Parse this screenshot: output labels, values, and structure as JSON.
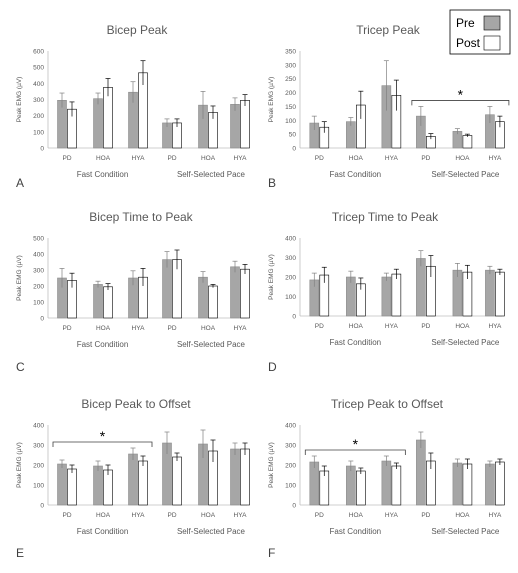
{
  "legend": {
    "entries": [
      {
        "label": "Pre",
        "color": "#a6a6a6"
      },
      {
        "label": "Post",
        "color": "#ffffff"
      }
    ]
  },
  "chart_data": [
    {
      "type": "bar",
      "letter": "A",
      "title": "Bicep Peak",
      "ylabel": "Peak EMG (µV)",
      "ylim": [
        0,
        600
      ],
      "yticks": [
        0,
        100,
        200,
        300,
        400,
        500,
        600
      ],
      "categories": [
        "PD",
        "HOA",
        "HYA",
        "PD",
        "HOA",
        "HYA"
      ],
      "conditions": [
        "Fast Condition",
        "Self-Selected Pace"
      ],
      "series": [
        {
          "name": "Pre",
          "values": [
            295,
            305,
            345,
            155,
            265,
            270
          ],
          "errors": [
            45,
            35,
            65,
            25,
            85,
            40
          ]
        },
        {
          "name": "Post",
          "values": [
            240,
            375,
            465,
            155,
            220,
            295
          ],
          "errors": [
            45,
            55,
            75,
            25,
            40,
            35
          ]
        }
      ],
      "significance": null
    },
    {
      "type": "bar",
      "letter": "B",
      "title": "Tricep Peak",
      "ylabel": "Peak EMG (µV)",
      "ylim": [
        0,
        350
      ],
      "yticks": [
        0,
        50,
        100,
        150,
        200,
        250,
        300,
        350
      ],
      "categories": [
        "PD",
        "HOA",
        "HYA",
        "PD",
        "HOA",
        "HYA"
      ],
      "conditions": [
        "Fast Condition",
        "Self-Selected Pace"
      ],
      "series": [
        {
          "name": "Pre",
          "values": [
            90,
            95,
            225,
            115,
            60,
            120
          ],
          "errors": [
            25,
            15,
            90,
            35,
            10,
            30
          ]
        },
        {
          "name": "Post",
          "values": [
            75,
            155,
            190,
            42,
            45,
            95
          ],
          "errors": [
            20,
            50,
            55,
            10,
            5,
            20
          ]
        }
      ],
      "significance": {
        "label": "*",
        "from": 3,
        "to": 5
      }
    },
    {
      "type": "bar",
      "letter": "C",
      "title": "Bicep Time to Peak",
      "ylabel": "Peak EMG (µV)",
      "ylim": [
        0,
        500
      ],
      "yticks": [
        0,
        100,
        200,
        300,
        400,
        500
      ],
      "categories": [
        "PD",
        "HOA",
        "HYA",
        "PD",
        "HOA",
        "HYA"
      ],
      "conditions": [
        "Fast Condition",
        "Self-Selected Pace"
      ],
      "series": [
        {
          "name": "Pre",
          "values": [
            250,
            210,
            250,
            365,
            255,
            320
          ],
          "errors": [
            60,
            20,
            45,
            50,
            35,
            35
          ]
        },
        {
          "name": "Post",
          "values": [
            235,
            195,
            255,
            365,
            200,
            305
          ],
          "errors": [
            45,
            20,
            55,
            60,
            10,
            30
          ]
        }
      ],
      "significance": null
    },
    {
      "type": "bar",
      "letter": "D",
      "title": "Tricep Time to Peak",
      "ylabel": "Peak EMG (µV)",
      "ylim": [
        0,
        400
      ],
      "yticks": [
        0,
        100,
        200,
        300,
        400
      ],
      "categories": [
        "PD",
        "HOA",
        "HYA",
        "PD",
        "HOA",
        "HYA"
      ],
      "conditions": [
        "Fast Condition",
        "Self-Selected Pace"
      ],
      "series": [
        {
          "name": "Pre",
          "values": [
            185,
            200,
            200,
            295,
            235,
            235
          ],
          "errors": [
            35,
            30,
            20,
            40,
            35,
            20
          ]
        },
        {
          "name": "Post",
          "values": [
            210,
            165,
            215,
            255,
            225,
            225
          ],
          "errors": [
            40,
            30,
            25,
            55,
            35,
            15
          ]
        }
      ],
      "significance": null
    },
    {
      "type": "bar",
      "letter": "E",
      "title": "Bicep Peak to Offset",
      "ylabel": "Peak EMG (µV)",
      "ylim": [
        0,
        400
      ],
      "yticks": [
        0,
        100,
        200,
        300,
        400
      ],
      "categories": [
        "PD",
        "HOA",
        "HYA",
        "PD",
        "HOA",
        "HYA"
      ],
      "conditions": [
        "Fast Condition",
        "Self-Selected Pace"
      ],
      "series": [
        {
          "name": "Pre",
          "values": [
            205,
            195,
            255,
            310,
            305,
            280
          ],
          "errors": [
            20,
            25,
            30,
            55,
            70,
            30
          ]
        },
        {
          "name": "Post",
          "values": [
            180,
            175,
            220,
            240,
            270,
            280
          ],
          "errors": [
            20,
            25,
            25,
            20,
            55,
            30
          ]
        }
      ],
      "significance": {
        "label": "*",
        "from": 0,
        "to": 2
      }
    },
    {
      "type": "bar",
      "letter": "F",
      "title": "Tricep Peak to Offset",
      "ylabel": "Peak EMG (µV)",
      "ylim": [
        0,
        400
      ],
      "yticks": [
        0,
        100,
        200,
        300,
        400
      ],
      "categories": [
        "PD",
        "HOA",
        "HYA",
        "PD",
        "HOA",
        "HYA"
      ],
      "conditions": [
        "Fast Condition",
        "Self-Selected Pace"
      ],
      "series": [
        {
          "name": "Pre",
          "values": [
            215,
            195,
            220,
            325,
            210,
            205
          ],
          "errors": [
            30,
            25,
            25,
            40,
            20,
            15
          ]
        },
        {
          "name": "Post",
          "values": [
            170,
            170,
            195,
            220,
            205,
            215
          ],
          "errors": [
            25,
            15,
            15,
            40,
            25,
            15
          ]
        }
      ],
      "significance": {
        "label": "*",
        "from": 0,
        "to": 2
      }
    }
  ]
}
